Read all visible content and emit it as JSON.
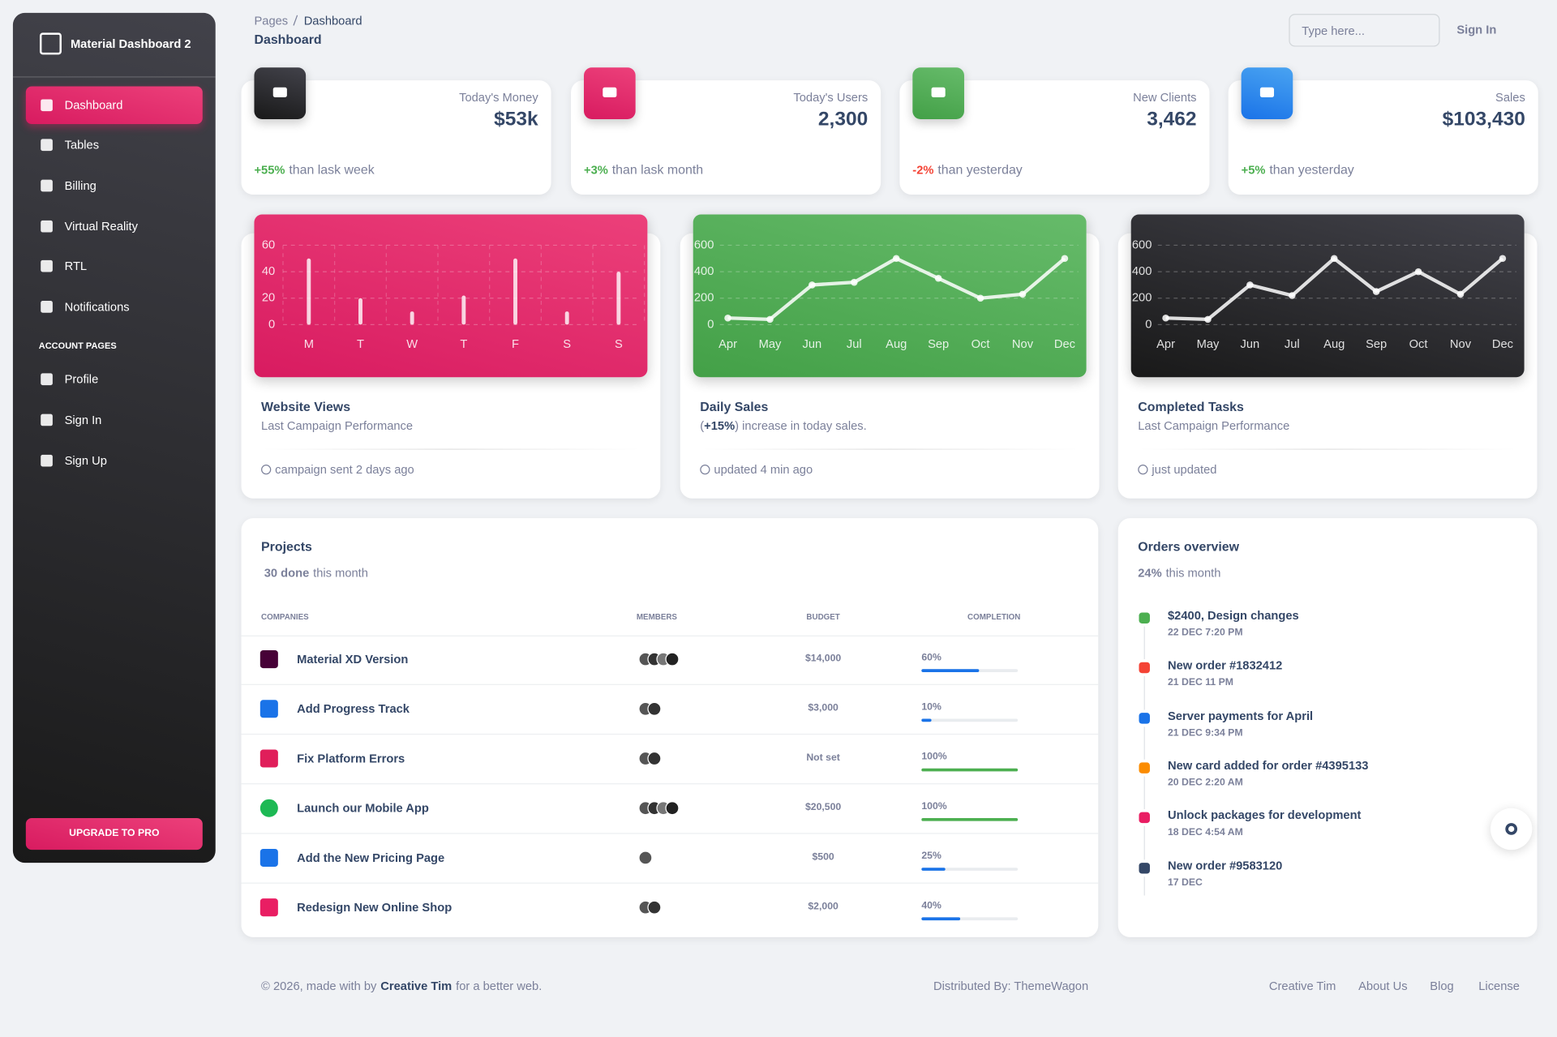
{
  "sidebar": {
    "brand": "Material Dashboard 2",
    "nav": [
      "Dashboard",
      "Tables",
      "Billing",
      "Virtual Reality",
      "RTL",
      "Notifications"
    ],
    "section": "ACCOUNT PAGES",
    "account_nav": [
      "Profile",
      "Sign In",
      "Sign Up"
    ],
    "upgrade": "UPGRADE TO PRO"
  },
  "header": {
    "breadcrumb": [
      "Pages",
      "Dashboard"
    ],
    "title": "Dashboard",
    "search_placeholder": "Type here...",
    "sign_in": "Sign In"
  },
  "stats": [
    {
      "label": "Today's Money",
      "value": "$53k",
      "change": "+55%",
      "note": "than lask week"
    },
    {
      "label": "Today's Users",
      "value": "2,300",
      "change": "+3%",
      "note": "than lask month"
    },
    {
      "label": "New Clients",
      "value": "3,462",
      "change": "-2%",
      "note": "than yesterday"
    },
    {
      "label": "Sales",
      "value": "$103,430",
      "change": "+5%",
      "note": "than yesterday"
    }
  ],
  "chart_data": [
    {
      "type": "bar",
      "title": "Website Views",
      "subtitle": [
        "Last Campaign Performance"
      ],
      "footer": "campaign sent 2 days ago",
      "categories": [
        "M",
        "T",
        "W",
        "T",
        "F",
        "S",
        "S"
      ],
      "values": [
        50,
        20,
        10,
        22,
        50,
        10,
        40
      ],
      "ylim": [
        0,
        60
      ],
      "yticks": [
        0,
        20,
        40,
        60
      ],
      "grid": true,
      "color": "rgba(255,255,255,0.8)"
    },
    {
      "type": "line",
      "title": "Daily Sales",
      "subtitle": [
        "(",
        "+15%",
        ") increase in today sales."
      ],
      "footer": "updated 4 min ago",
      "categories": [
        "Apr",
        "May",
        "Jun",
        "Jul",
        "Aug",
        "Sep",
        "Oct",
        "Nov",
        "Dec"
      ],
      "values": [
        50,
        40,
        300,
        320,
        500,
        350,
        200,
        230,
        500
      ],
      "ylim": [
        0,
        600
      ],
      "yticks": [
        0,
        200,
        400,
        600
      ],
      "grid": true,
      "color": "rgba(255,255,255,0.85)"
    },
    {
      "type": "line",
      "title": "Completed Tasks",
      "subtitle": [
        "Last Campaign Performance"
      ],
      "footer": "just updated",
      "categories": [
        "Apr",
        "May",
        "Jun",
        "Jul",
        "Aug",
        "Sep",
        "Oct",
        "Nov",
        "Dec"
      ],
      "values": [
        50,
        40,
        300,
        220,
        500,
        250,
        400,
        230,
        500
      ],
      "ylim": [
        0,
        600
      ],
      "yticks": [
        0,
        200,
        400,
        600
      ],
      "grid": true,
      "color": "rgba(255,255,255,0.85)"
    }
  ],
  "projects": {
    "title": "Projects",
    "done": "30 done",
    "done_suffix": "this month",
    "columns": [
      "COMPANIES",
      "MEMBERS",
      "BUDGET",
      "COMPLETION"
    ],
    "rows": [
      {
        "name": "Material XD Version",
        "budget": "$14,000",
        "completion": {
          "value": 60,
          "label": "60%"
        }
      },
      {
        "name": "Add Progress Track",
        "budget": "$3,000",
        "completion": {
          "value": 10,
          "label": "10%"
        }
      },
      {
        "name": "Fix Platform Errors",
        "budget": "Not set",
        "completion": {
          "value": 100,
          "label": "100%"
        }
      },
      {
        "name": "Launch our Mobile App",
        "budget": "$20,500",
        "completion": {
          "value": 100,
          "label": "100%"
        }
      },
      {
        "name": "Add the New Pricing Page",
        "budget": "$500",
        "completion": {
          "value": 25,
          "label": "25%"
        }
      },
      {
        "name": "Redesign New Online Shop",
        "budget": "$2,000",
        "completion": {
          "value": 40,
          "label": "40%"
        }
      }
    ]
  },
  "orders": {
    "title": "Orders overview",
    "percent": "24%",
    "suffix": "this month",
    "items": [
      {
        "title": "$2400, Design changes",
        "date": "22 DEC 7:20 PM"
      },
      {
        "title": "New order #1832412",
        "date": "21 DEC 11 PM"
      },
      {
        "title": "Server payments for April",
        "date": "21 DEC 9:34 PM"
      },
      {
        "title": "New card added for order #4395133",
        "date": "20 DEC 2:20 AM"
      },
      {
        "title": "Unlock packages for development",
        "date": "18 DEC 4:54 AM"
      },
      {
        "title": "New order #9583120",
        "date": "17 DEC"
      }
    ]
  },
  "footer": {
    "copyright": [
      "© 2026, made with by",
      "Creative Tim",
      "for a better web."
    ],
    "distributed": "Distributed By: ThemeWagon",
    "links": [
      "Creative Tim",
      "About Us",
      "Blog",
      "License"
    ]
  }
}
